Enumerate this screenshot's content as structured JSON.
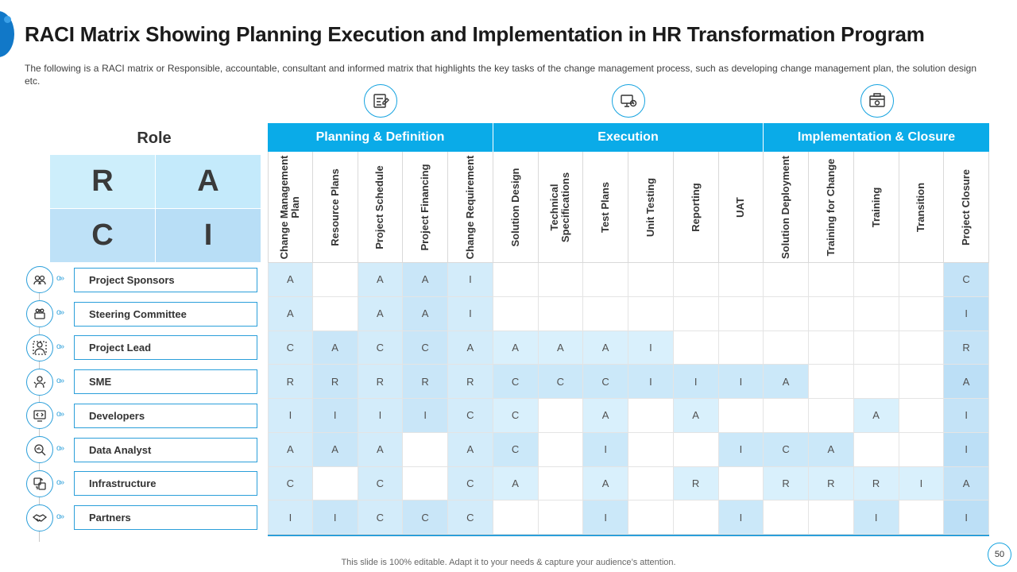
{
  "title": "RACI Matrix Showing Planning Execution and Implementation in HR Transformation Program",
  "description": "The following is a RACI matrix or Responsible, accountable, consultant and informed matrix that highlights the key tasks of the change management process, such as developing change management plan, the solution design etc.",
  "role_heading": "Role",
  "raci_legend": [
    "R",
    "A",
    "C",
    "I"
  ],
  "phases": [
    {
      "label": "Planning & Definition",
      "icon": "planning-icon"
    },
    {
      "label": "Execution",
      "icon": "execution-icon"
    },
    {
      "label": "Implementation & Closure",
      "icon": "implementation-icon"
    }
  ],
  "columns": [
    "Change Management Plan",
    "Resource Plans",
    "Project Schedule",
    "Project Financing",
    "Change Requirement",
    "Solution Design",
    "Technical Specifications",
    "Test Plans",
    "Unit Testing",
    "Reporting",
    "UAT",
    "Solution Deployment",
    "Training for Change",
    "Training",
    "Transition",
    "Project Closure"
  ],
  "roles": [
    {
      "name": "Project Sponsors",
      "icon": "sponsors-icon",
      "values": [
        "A",
        "",
        "A",
        "A",
        "I",
        "",
        "",
        "",
        "",
        "",
        "",
        "",
        "",
        "",
        "",
        "C"
      ]
    },
    {
      "name": "Steering Committee",
      "icon": "committee-icon",
      "values": [
        "A",
        "",
        "A",
        "A",
        "I",
        "",
        "",
        "",
        "",
        "",
        "",
        "",
        "",
        "",
        "",
        "I"
      ]
    },
    {
      "name": "Project Lead",
      "icon": "lead-icon",
      "values": [
        "C",
        "A",
        "C",
        "C",
        "A",
        "A",
        "A",
        "A",
        "I",
        "",
        "",
        "",
        "",
        "",
        "",
        "R"
      ]
    },
    {
      "name": "SME",
      "icon": "sme-icon",
      "values": [
        "R",
        "R",
        "R",
        "R",
        "R",
        "C",
        "C",
        "C",
        "I",
        "I",
        "I",
        "A",
        "",
        "",
        "",
        "A"
      ]
    },
    {
      "name": "Developers",
      "icon": "developers-icon",
      "values": [
        "I",
        "I",
        "I",
        "I",
        "C",
        "C",
        "",
        "A",
        "",
        "A",
        "",
        "",
        "",
        "A",
        "",
        "I"
      ]
    },
    {
      "name": "Data Analyst",
      "icon": "analyst-icon",
      "values": [
        "A",
        "A",
        "A",
        "",
        "A",
        "C",
        "",
        "I",
        "",
        "",
        "I",
        "C",
        "A",
        "",
        "",
        "I"
      ]
    },
    {
      "name": "Infrastructure",
      "icon": "infrastructure-icon",
      "values": [
        "C",
        "",
        "C",
        "",
        "C",
        "A",
        "",
        "A",
        "",
        "R",
        "",
        "R",
        "R",
        "R",
        "I",
        "A"
      ]
    },
    {
      "name": "Partners",
      "icon": "partners-icon",
      "values": [
        "I",
        "I",
        "C",
        "C",
        "C",
        "",
        "",
        "I",
        "",
        "",
        "I",
        "",
        "",
        "I",
        "",
        "I"
      ]
    }
  ],
  "colors": {
    "header": "#0aabe8",
    "accent": "#2b9fda",
    "cell_light": "#d7effb",
    "cell_mid": "#c3e3f7"
  },
  "footer": "This slide is 100% editable. Adapt it to your needs & capture your audience’s attention.",
  "page_number": "50"
}
